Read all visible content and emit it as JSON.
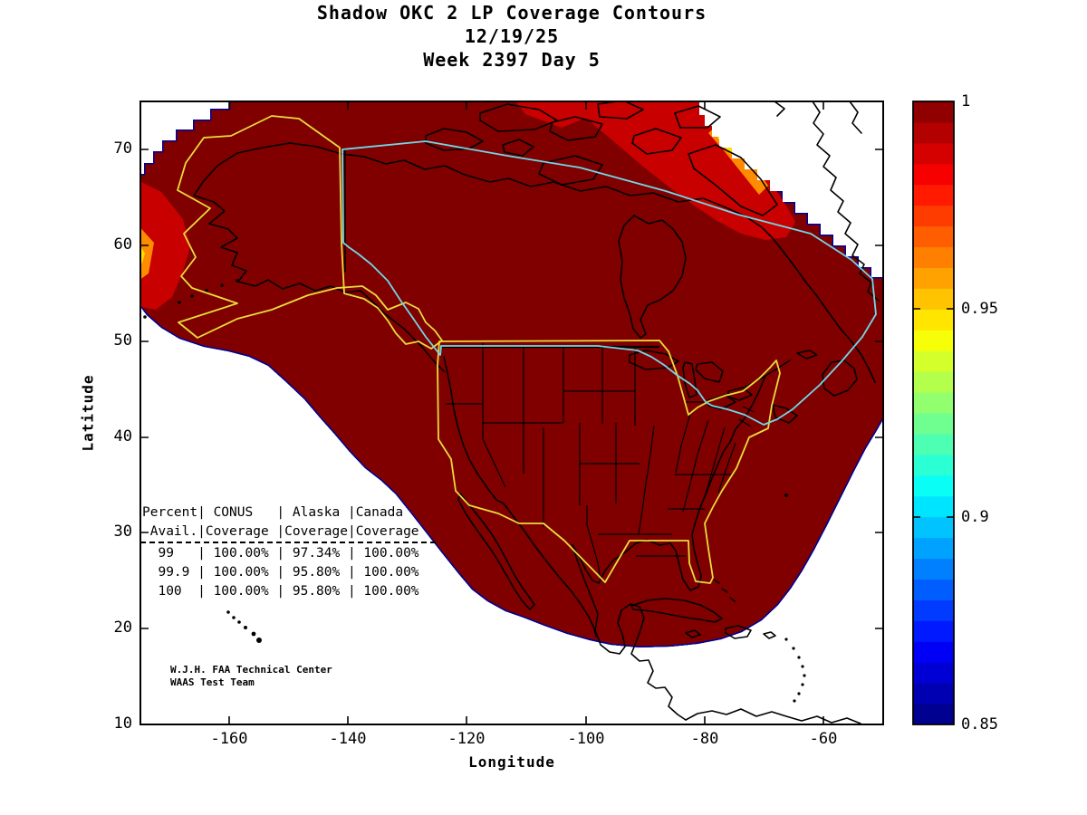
{
  "figure": {
    "title_line1": "Shadow OKC 2 LP Coverage Contours",
    "title_line2": "12/19/25",
    "title_line3": "Week 2397 Day 5"
  },
  "axes": {
    "xlabel": "Longitude",
    "ylabel": "Latitude",
    "x_tick_labels": [
      "-160",
      "-140",
      "-120",
      "-100",
      "-80",
      "-60"
    ],
    "y_tick_labels": [
      "70",
      "60",
      "50",
      "40",
      "30",
      "20",
      "10"
    ]
  },
  "colorbar": {
    "tick_labels": [
      "1",
      "0.95",
      "0.9",
      "0.85"
    ],
    "min": 0.85,
    "max": 1,
    "levels": 30
  },
  "stats_table": {
    "line1": "Percent| CONUS   | Alaska |Canada",
    "line2": " Avail.|Coverage |Coverage|Coverage",
    "line3": "  99   | 100.00% | 97.34% | 100.00%",
    "line4": "  99.9 | 100.00% | 95.80% | 100.00%",
    "line5": "  100  | 100.00% | 95.80% | 100.00%"
  },
  "credit": {
    "line1": "W.J.H. FAA Technical Center",
    "line2": "WAAS Test Team"
  },
  "chart_data": {
    "type": "contour-map",
    "title": "Shadow OKC 2 LP Coverage Contours",
    "date": "12/19/25",
    "gps_week": 2397,
    "gps_day": 5,
    "xlabel": "Longitude",
    "ylabel": "Latitude",
    "xlim": [
      -175,
      -50
    ],
    "ylim": [
      10,
      75
    ],
    "x_ticks": [
      -160,
      -140,
      -120,
      -100,
      -80,
      -60
    ],
    "y_ticks": [
      70,
      60,
      50,
      40,
      30,
      20,
      10
    ],
    "grid": false,
    "colorbar": {
      "orientation": "vertical",
      "min": 0.85,
      "max": 1.0,
      "levels": 30,
      "colormap": "jet",
      "tick_values": [
        1,
        0.95,
        0.9,
        0.85
      ]
    },
    "contour_quantity": "LP availability fraction (0.85 - 1.0), dark red = 1.0 over nearly all of North America, rainbow fringe along Pacific/Caribbean/Atlantic edges of coverage",
    "coverage_table": {
      "columns": [
        "Percent Avail.",
        "CONUS Coverage",
        "Alaska Coverage",
        "Canada Coverage"
      ],
      "rows": [
        [
          "99",
          "100.00%",
          "97.34%",
          "100.00%"
        ],
        [
          "99.9",
          "100.00%",
          "95.80%",
          "100.00%"
        ],
        [
          "100",
          "100.00%",
          "95.80%",
          "100.00%"
        ]
      ]
    },
    "colors": {
      "coverage_fill": "#800000",
      "bright_red_band": "#c80000",
      "conus_alaska_boundary": "#e8dc3c",
      "canada_boundary": "#70d8e8",
      "coastline": "#000000",
      "background": "#ffffff"
    }
  }
}
